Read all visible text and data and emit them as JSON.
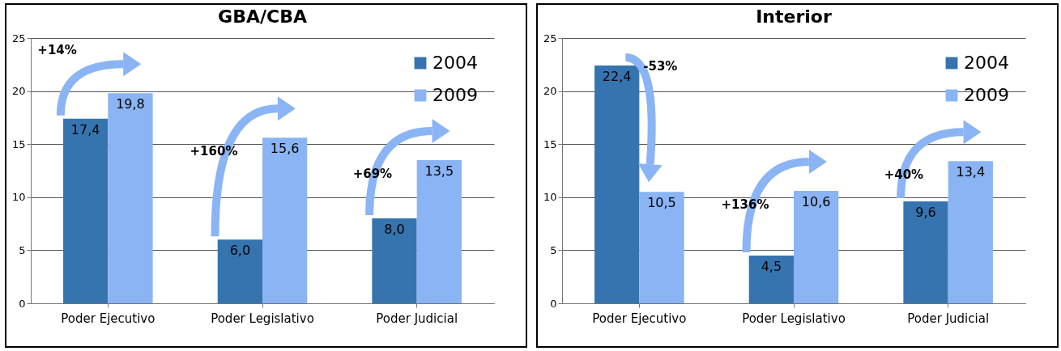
{
  "chart_data": [
    {
      "type": "bar",
      "title": "GBA/CBA",
      "categories": [
        "Poder Ejecutivo",
        "Poder Legislativo",
        "Poder Judicial"
      ],
      "series": [
        {
          "name": "2004",
          "color": "#3674b0",
          "values": [
            17.4,
            6.0,
            8.0
          ],
          "value_labels": [
            "17,4",
            "6,0",
            "8,0"
          ]
        },
        {
          "name": "2009",
          "color": "#8ab4f4",
          "values": [
            19.8,
            15.6,
            13.5
          ],
          "value_labels": [
            "19,8",
            "15,6",
            "13,5"
          ]
        }
      ],
      "ylim": [
        0,
        25
      ],
      "yticks": [
        0,
        5,
        10,
        15,
        20,
        25
      ],
      "grid": "y",
      "legend": "top right",
      "annotations": [
        "+14%",
        "+160%",
        "+69%"
      ]
    },
    {
      "type": "bar",
      "title": "Interior",
      "categories": [
        "Poder Ejecutivo",
        "Poder Legislativo",
        "Poder Judicial"
      ],
      "series": [
        {
          "name": "2004",
          "color": "#3674b0",
          "values": [
            22.4,
            4.5,
            9.6
          ],
          "value_labels": [
            "22,4",
            "4,5",
            "9,6"
          ]
        },
        {
          "name": "2009",
          "color": "#8ab4f4",
          "values": [
            10.5,
            10.6,
            13.4
          ],
          "value_labels": [
            "10,5",
            "10,6",
            "13,4"
          ]
        }
      ],
      "ylim": [
        0,
        25
      ],
      "yticks": [
        0,
        5,
        10,
        15,
        20,
        25
      ],
      "grid": "y",
      "legend": "top right",
      "annotations": [
        "-53%",
        "+136%",
        "+40%"
      ]
    }
  ]
}
